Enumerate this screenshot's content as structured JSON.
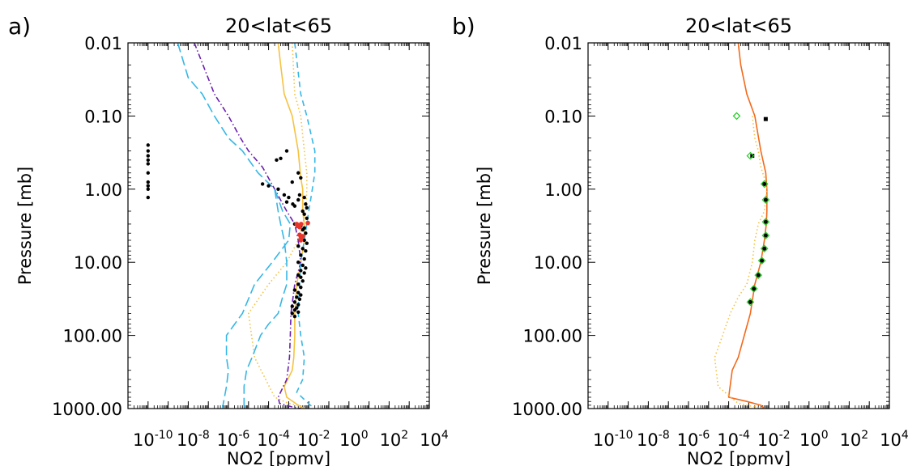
{
  "chart_data": [
    {
      "type": "line",
      "panel_label": "a)",
      "title": "20<lat<65",
      "xlabel": "NO2 [ppmv]",
      "ylabel": "Pressure [mb]",
      "x_scale": "log",
      "y_scale": "log",
      "y_inverted": true,
      "xlim": [
        1e-11,
        10000
      ],
      "ylim": [
        1000,
        0.01
      ],
      "xtick_labels": [
        {
          "base": "10",
          "exp": "-10"
        },
        {
          "base": "10",
          "exp": "-8"
        },
        {
          "base": "10",
          "exp": "-6"
        },
        {
          "base": "10",
          "exp": "-4"
        },
        {
          "base": "10",
          "exp": "-2"
        },
        {
          "base": "10",
          "exp": "0"
        },
        {
          "base": "10",
          "exp": "2"
        },
        {
          "base": "10",
          "exp": "4"
        }
      ],
      "ytick_labels": [
        "0.01",
        "0.10",
        "1.00",
        "10.00",
        "100.00",
        "1000.00"
      ],
      "grid": false,
      "series": [
        {
          "style": "solid",
          "color": "#f5c242",
          "x": [
            0.0003,
            0.0004,
            0.0006,
            0.0015,
            0.003,
            0.004,
            0.005,
            0.005,
            0.006,
            0.006,
            0.004,
            0.0025,
            0.002,
            0.002,
            0.0018,
            0.0015,
            0.0006,
            0.0008,
            0.003,
            0.006
          ],
          "y": [
            0.01,
            0.02,
            0.05,
            0.1,
            0.3,
            0.7,
            1,
            2,
            3,
            5,
            10,
            20,
            50,
            100,
            200,
            300,
            500,
            700,
            900,
            1000
          ]
        },
        {
          "style": "dotted",
          "color": "#f5c242",
          "x": [
            0.0015,
            0.002,
            0.004,
            0.006,
            0.008,
            0.008,
            0.007,
            0.005,
            0.003,
            0.0008,
            0.0001,
            1e-05,
            2e-05,
            0.0002,
            0.001,
            0.003,
            0.007
          ],
          "y": [
            0.01,
            0.05,
            0.1,
            0.3,
            0.6,
            1,
            2,
            3,
            5,
            10,
            20,
            50,
            200,
            700,
            850,
            900,
            1000
          ]
        },
        {
          "style": "dash-dot",
          "color": "#6a1fb0",
          "x": [
            2e-08,
            2e-07,
            1e-06,
            4e-06,
            1e-05,
            5e-05,
            0.0002,
            0.0008,
            0.002,
            0.003,
            0.004,
            0.002,
            0.0013,
            0.0012,
            0.0011,
            0.0008,
            0.0003,
            0.00035,
            0.0015,
            0.004
          ],
          "y": [
            0.01,
            0.05,
            0.1,
            0.2,
            0.3,
            0.5,
            1,
            2,
            3,
            5,
            10,
            20,
            50,
            100,
            200,
            400,
            700,
            850,
            950,
            1000
          ]
        },
        {
          "style": "long-dash",
          "color": "#36b7e6",
          "x": [
            3e-09,
            1e-08,
            5e-08,
            2e-07,
            1e-06,
            5e-06,
            3e-05,
            0.0002,
            0.0005,
            0.0012,
            0.001,
            0.00015,
            2e-05,
            5e-06,
            8e-07,
            8e-07,
            1e-06,
            8e-07,
            5e-07
          ],
          "y": [
            0.01,
            0.03,
            0.05,
            0.1,
            0.2,
            0.3,
            0.6,
            1,
            2,
            3,
            5,
            10,
            20,
            50,
            100,
            200,
            300,
            500,
            1000
          ]
        },
        {
          "style": "long-dash",
          "color": "#36b7e6",
          "x": [
            0.0002,
            0.0003,
            0.0004,
            0.0006,
            0.0008,
            0.0008,
            0.0005,
            0.0003,
            0.0001,
            4e-05,
            1.5e-05,
            8e-06,
            6e-06,
            6e-06
          ],
          "y": [
            1,
            2,
            3,
            5,
            10,
            20,
            30,
            50,
            70,
            100,
            200,
            300,
            500,
            1000
          ]
        },
        {
          "style": "dashed",
          "color": "#36b7e6",
          "x": [
            0.002,
            0.004,
            0.008,
            0.02,
            0.02,
            0.015,
            0.01,
            0.008,
            0.006,
            0.004,
            0.0035,
            0.003,
            0.004,
            0.006,
            0.005,
            0.0025,
            0.012,
            0.02
          ],
          "y": [
            0.01,
            0.05,
            0.1,
            0.3,
            0.6,
            1,
            2,
            3,
            5,
            10,
            20,
            50,
            100,
            200,
            400,
            600,
            900,
            1000
          ]
        }
      ],
      "points": [
        {
          "color": "#000000",
          "size": 2.2,
          "x": [
            1e-10,
            1e-10,
            1e-10,
            1e-10,
            1e-10,
            1e-10,
            1e-10,
            1e-10,
            1e-10,
            1e-10,
            0.00025,
            0.0004,
            0.0008,
            0.0015,
            5e-05,
            0.0001,
            0.0003,
            0.0006,
            0.001,
            0.0008,
            0.0016,
            0.002,
            0.003,
            0.0035,
            0.003,
            0.004,
            0.006,
            0.007,
            0.008,
            0.005,
            0.006,
            0.008,
            0.002,
            0.004,
            0.006,
            0.005,
            0.007,
            0.004,
            0.006,
            0.008,
            0.003,
            0.005,
            0.007,
            0.004,
            0.006,
            0.003,
            0.005,
            0.007,
            0.004,
            0.006,
            0.003,
            0.004,
            0.005,
            0.003,
            0.004,
            0.002,
            0.003,
            0.004,
            0.0025,
            0.0035,
            0.002,
            0.003,
            0.0015,
            0.0025,
            0.002,
            0.003,
            0.0015,
            0.002
          ],
          "y": [
            0.25,
            0.3,
            0.35,
            0.4,
            0.45,
            0.6,
            0.8,
            0.9,
            1.0,
            1.3,
            0.4,
            0.38,
            0.3,
            0.8,
            0.85,
            0.9,
            1.0,
            1.2,
            1.3,
            1.5,
            1.6,
            1.7,
            1.4,
            1.2,
            0.6,
            0.7,
            1.3,
            1.6,
            1.8,
            2.0,
            2.2,
            2.5,
            3.0,
            3.2,
            3.4,
            3.6,
            4.0,
            4.5,
            5.0,
            5.5,
            6.0,
            6.5,
            7.0,
            8.0,
            9.0,
            10.0,
            11.0,
            12.0,
            13.0,
            14.0,
            15.0,
            16.0,
            18.0,
            20.0,
            22.0,
            24.0,
            26.0,
            28.0,
            30.0,
            32.0,
            35.0,
            38.0,
            40.0,
            42.0,
            45.0,
            48.0,
            50.0,
            55.0
          ]
        },
        {
          "color": "#e8352a",
          "size": 2.8,
          "x": [
            0.0025,
            0.0032,
            0.0028,
            0.0035,
            0.0042,
            0.009,
            0.0035,
            0.0042,
            0.005,
            0.004
          ],
          "y": [
            3.0,
            3.1,
            3.2,
            3.3,
            3.0,
            2.9,
            4.2,
            4.6,
            4.4,
            5.0
          ]
        }
      ]
    },
    {
      "type": "line",
      "panel_label": "b)",
      "title": "20<lat<65",
      "xlabel": "NO2 [ppmv]",
      "ylabel": "Pressure [mb]",
      "x_scale": "log",
      "y_scale": "log",
      "y_inverted": true,
      "xlim": [
        1e-11,
        10000
      ],
      "ylim": [
        1000,
        0.01
      ],
      "xtick_labels": [
        {
          "base": "10",
          "exp": "-10"
        },
        {
          "base": "10",
          "exp": "-8"
        },
        {
          "base": "10",
          "exp": "-6"
        },
        {
          "base": "10",
          "exp": "-4"
        },
        {
          "base": "10",
          "exp": "-2"
        },
        {
          "base": "10",
          "exp": "0"
        },
        {
          "base": "10",
          "exp": "2"
        },
        {
          "base": "10",
          "exp": "4"
        }
      ],
      "ytick_labels": [
        "0.01",
        "0.10",
        "1.00",
        "10.00",
        "100.00",
        "1000.00"
      ],
      "grid": false,
      "series": [
        {
          "style": "solid",
          "color": "#f26a1b",
          "x": [
            0.0003,
            0.0004,
            0.0008,
            0.002,
            0.004,
            0.007,
            0.008,
            0.008,
            0.0075,
            0.006,
            0.004,
            0.002,
            0.0012,
            0.0006,
            0.0003,
            0.00015,
            0.0001,
            0.0008,
            0.004,
            0.006
          ],
          "y": [
            0.01,
            0.02,
            0.05,
            0.1,
            0.3,
            0.6,
            1,
            2,
            3,
            5,
            10,
            20,
            50,
            100,
            200,
            300,
            700,
            800,
            900,
            1000
          ]
        },
        {
          "style": "dotted",
          "color": "#f5c242",
          "x": [
            0.0015,
            0.002,
            0.003,
            0.004,
            0.006,
            0.008,
            0.006,
            0.003,
            0.002,
            0.0015,
            0.0008,
            0.0003,
            0.00012,
            5e-05,
            2e-05,
            3e-05,
            0.0003,
            0.002,
            0.006
          ],
          "y": [
            0.1,
            0.2,
            0.3,
            0.5,
            0.7,
            1,
            2,
            3,
            5,
            10,
            20,
            30,
            50,
            100,
            200,
            500,
            850,
            950,
            1000
          ]
        }
      ],
      "points": [
        {
          "color": "#000000",
          "marker": "x-box",
          "x": [
            0.007,
            0.0015,
            0.006,
            0.007,
            0.007,
            0.007,
            0.006,
            0.0045,
            0.003,
            0.0018,
            0.0012
          ],
          "y": [
            0.11,
            0.35,
            0.85,
            1.4,
            2.8,
            4.3,
            6.5,
            9.5,
            15,
            23,
            35
          ]
        },
        {
          "color": "#22cc22",
          "marker": "diamond",
          "x": [
            0.00025,
            0.0012,
            0.006,
            0.007,
            0.007,
            0.007,
            0.006,
            0.0045,
            0.003,
            0.0018,
            0.0012
          ],
          "y": [
            0.1,
            0.35,
            0.85,
            1.4,
            2.8,
            4.3,
            6.5,
            9.5,
            15,
            23,
            35
          ]
        }
      ]
    }
  ]
}
